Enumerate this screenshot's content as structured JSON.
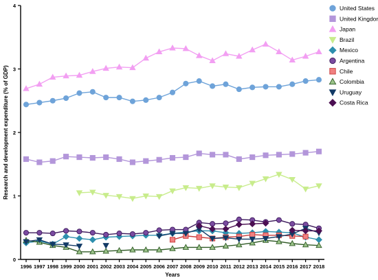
{
  "chart_data": {
    "type": "line",
    "title": "",
    "xlabel": "Years",
    "ylabel": "Research and development expenditure (% of GDP)",
    "x": [
      1996,
      1997,
      1998,
      1999,
      2000,
      2001,
      2002,
      2003,
      2004,
      2005,
      2006,
      2007,
      2008,
      2009,
      2010,
      2011,
      2012,
      2013,
      2014,
      2015,
      2016,
      2017,
      2018
    ],
    "xticks": [
      "1996",
      "1997",
      "1998",
      "1999",
      "2000",
      "2001",
      "2002",
      "2003",
      "2004",
      "2005",
      "2006",
      "2007",
      "2008",
      "2009",
      "2010",
      "2011",
      "2012",
      "2013",
      "2014",
      "2015",
      "2016",
      "2017",
      "2018"
    ],
    "ylim": [
      0,
      4
    ],
    "yticks": [
      "0",
      "1",
      "2",
      "3",
      "4"
    ],
    "grid": false,
    "legend_position": "top-right",
    "series": [
      {
        "name": "United States",
        "color": "#6ea3d9",
        "edge": "#6ea3d9",
        "marker": "circle",
        "values": [
          2.44,
          2.47,
          2.5,
          2.54,
          2.62,
          2.64,
          2.55,
          2.55,
          2.49,
          2.51,
          2.55,
          2.63,
          2.77,
          2.81,
          2.73,
          2.76,
          2.68,
          2.71,
          2.72,
          2.72,
          2.76,
          2.81,
          2.83
        ]
      },
      {
        "name": "United Kingdom",
        "color": "#b396da",
        "edge": "#b396da",
        "marker": "square",
        "values": [
          1.58,
          1.53,
          1.55,
          1.62,
          1.61,
          1.6,
          1.61,
          1.58,
          1.53,
          1.55,
          1.57,
          1.6,
          1.61,
          1.67,
          1.65,
          1.65,
          1.58,
          1.61,
          1.64,
          1.65,
          1.66,
          1.68,
          1.7
        ]
      },
      {
        "name": "Japan",
        "color": "#f29ff2",
        "edge": "#f29ff2",
        "marker": "triangle-up",
        "values": [
          2.69,
          2.76,
          2.87,
          2.89,
          2.9,
          2.96,
          3.01,
          3.03,
          3.02,
          3.17,
          3.27,
          3.33,
          3.32,
          3.21,
          3.13,
          3.24,
          3.2,
          3.3,
          3.39,
          3.27,
          3.14,
          3.2,
          3.27
        ]
      },
      {
        "name": "Brazil",
        "color": "#c8ec8c",
        "edge": "#c8ec8c",
        "marker": "triangle-down",
        "values": [
          null,
          null,
          null,
          null,
          1.05,
          1.06,
          1.01,
          0.99,
          0.96,
          1.0,
          0.99,
          1.08,
          1.13,
          1.12,
          1.16,
          1.14,
          1.13,
          1.2,
          1.27,
          1.34,
          1.26,
          1.11,
          1.16
        ]
      },
      {
        "name": "Mexico",
        "color": "#2d8fae",
        "edge": "#2d8fae",
        "marker": "diamond",
        "values": [
          0.26,
          0.29,
          0.24,
          0.36,
          0.33,
          0.31,
          0.35,
          0.36,
          0.37,
          0.38,
          0.38,
          0.41,
          0.43,
          0.45,
          0.45,
          0.42,
          0.41,
          0.42,
          0.44,
          0.43,
          0.42,
          0.35,
          0.31
        ]
      },
      {
        "name": "Argentina",
        "color": "#7a4ba0",
        "edge": "#3d1a5c",
        "marker": "circle",
        "values": [
          0.42,
          0.42,
          0.41,
          0.45,
          0.44,
          0.42,
          0.39,
          0.41,
          0.4,
          0.42,
          0.46,
          0.47,
          0.47,
          0.58,
          0.56,
          0.57,
          0.63,
          0.62,
          0.59,
          0.62,
          0.56,
          0.55,
          0.49
        ]
      },
      {
        "name": "Chile",
        "color": "#f08080",
        "edge": "#c83c3c",
        "marker": "square",
        "values": [
          null,
          null,
          null,
          null,
          null,
          null,
          null,
          null,
          null,
          null,
          null,
          0.31,
          0.37,
          0.35,
          0.33,
          0.35,
          0.36,
          0.39,
          0.38,
          0.38,
          0.37,
          0.36,
          null
        ]
      },
      {
        "name": "Colombia",
        "color": "#9bc389",
        "edge": "#2f5a25",
        "marker": "triangle-up",
        "values": [
          0.3,
          0.27,
          0.22,
          0.19,
          0.12,
          0.12,
          0.13,
          0.14,
          0.15,
          0.15,
          0.15,
          0.17,
          0.19,
          0.19,
          0.19,
          0.21,
          0.23,
          0.26,
          0.3,
          0.28,
          0.25,
          0.23,
          0.22
        ]
      },
      {
        "name": "Uruguay",
        "color": "#123a66",
        "edge": "#123a66",
        "marker": "triangle-down",
        "values": [
          0.28,
          0.31,
          0.24,
          0.23,
          0.21,
          null,
          0.22,
          null,
          null,
          null,
          0.37,
          0.41,
          0.41,
          0.48,
          0.33,
          0.34,
          0.32,
          0.32,
          0.33,
          0.36,
          0.4,
          0.49,
          0.42
        ]
      },
      {
        "name": "Costa Rica",
        "color": "#4b0f52",
        "edge": "#4b0f52",
        "marker": "diamond",
        "values": [
          null,
          null,
          null,
          null,
          null,
          null,
          null,
          null,
          null,
          null,
          null,
          null,
          null,
          0.53,
          0.48,
          0.48,
          0.55,
          0.56,
          0.57,
          null,
          0.46,
          0.45,
          0.45
        ]
      }
    ]
  }
}
